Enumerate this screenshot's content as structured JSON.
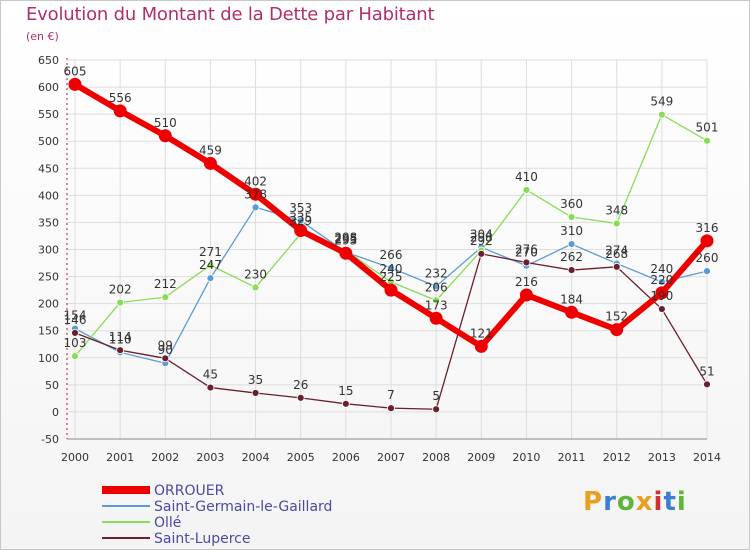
{
  "title": "Evolution du Montant de la Dette par Habitant",
  "subtitle": "(en €)",
  "logo": {
    "text": "Proxiti",
    "colors": [
      "#e8a020",
      "#3a7fd0",
      "#5fb53a",
      "#e8a020",
      "#d03030",
      "#3a7fd0",
      "#5fb53a"
    ]
  },
  "chart_data": {
    "type": "line",
    "x": [
      2000,
      2001,
      2002,
      2003,
      2004,
      2005,
      2006,
      2007,
      2008,
      2009,
      2010,
      2011,
      2012,
      2013,
      2014
    ],
    "ylim": [
      -50,
      650
    ],
    "yticks": [
      -50,
      0,
      50,
      100,
      150,
      200,
      250,
      300,
      350,
      400,
      450,
      500,
      550,
      600,
      650
    ],
    "grid": true,
    "legend_position": "bottom-left",
    "series": [
      {
        "name": "ORROUER",
        "color": "#ee0000",
        "values": [
          605,
          556,
          510,
          459,
          402,
          335,
          293,
          225,
          173,
          121,
          216,
          184,
          152,
          220,
          316
        ]
      },
      {
        "name": "Saint-Germain-le-Gaillard",
        "color": "#5b9bd5",
        "values": [
          154,
          110,
          90,
          247,
          378,
          353,
          295,
          266,
          232,
          304,
          270,
          310,
          274,
          240,
          260
        ]
      },
      {
        "name": "Ollé",
        "color": "#88dd55",
        "values": [
          103,
          202,
          212,
          271,
          230,
          329,
          298,
          240,
          206,
          298,
          410,
          360,
          348,
          549,
          501
        ]
      },
      {
        "name": "Saint-Luperce",
        "color": "#6b1f2a",
        "values": [
          146,
          114,
          99,
          45,
          35,
          26,
          15,
          7,
          5,
          292,
          276,
          262,
          268,
          190,
          51
        ]
      }
    ],
    "data_labels": [
      {
        "series": 0,
        "values": [
          "605",
          "556",
          "510",
          "459",
          "402",
          "335",
          "293",
          "225",
          "173",
          "121",
          "216",
          "184",
          "152",
          "220",
          "316"
        ]
      },
      {
        "series": 1,
        "values": [
          "154",
          "110",
          "90",
          "247",
          "378",
          "353",
          "295",
          "266",
          "232",
          "304",
          "270",
          "310",
          "274",
          "240",
          "260"
        ]
      },
      {
        "series": 2,
        "values": [
          "103",
          "202",
          "212",
          "271",
          "230",
          "329",
          "298",
          "240",
          "206",
          "298",
          "410",
          "360",
          "348",
          "549",
          "501"
        ]
      },
      {
        "series": 3,
        "values": [
          "146",
          "114",
          "99",
          "45",
          "35",
          "26",
          "15",
          "7",
          "5",
          "292",
          "276",
          "262",
          "268",
          "190",
          "51"
        ]
      }
    ]
  }
}
